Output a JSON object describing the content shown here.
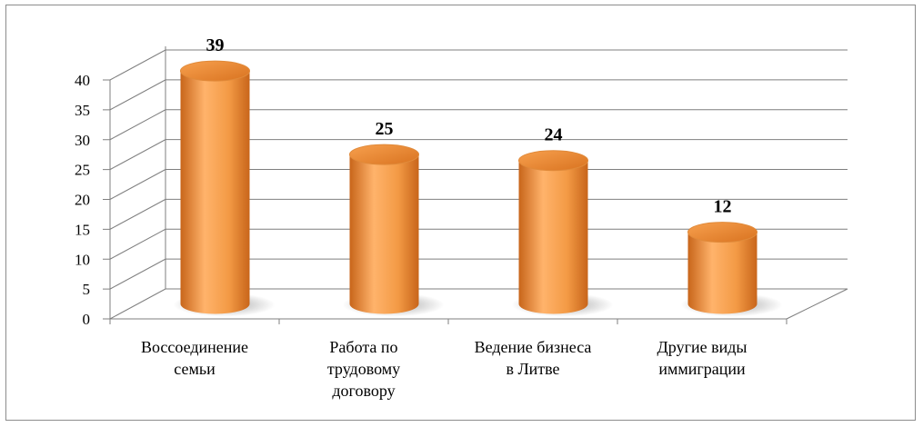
{
  "chart_data": {
    "type": "bar",
    "style": "3d-cylinder",
    "categories": [
      [
        "Воссоединение",
        "семьи"
      ],
      [
        "Работа по",
        "трудовому",
        "договору"
      ],
      [
        "Ведение бизнеса",
        "в Литве"
      ],
      [
        "Другие виды",
        "иммиграции"
      ]
    ],
    "values": [
      39,
      25,
      24,
      12
    ],
    "data_labels": [
      "39",
      "25",
      "24",
      "12"
    ],
    "ylim": [
      0,
      40
    ],
    "yticks": [
      0,
      5,
      10,
      15,
      20,
      25,
      30,
      35,
      40
    ],
    "grid": true,
    "legend": "none",
    "colors": {
      "bar_light": "#ffb36b",
      "bar_mid": "#f39a45",
      "bar_dark": "#c8651a",
      "gridline": "#7f7f7f",
      "text": "#000000"
    }
  }
}
